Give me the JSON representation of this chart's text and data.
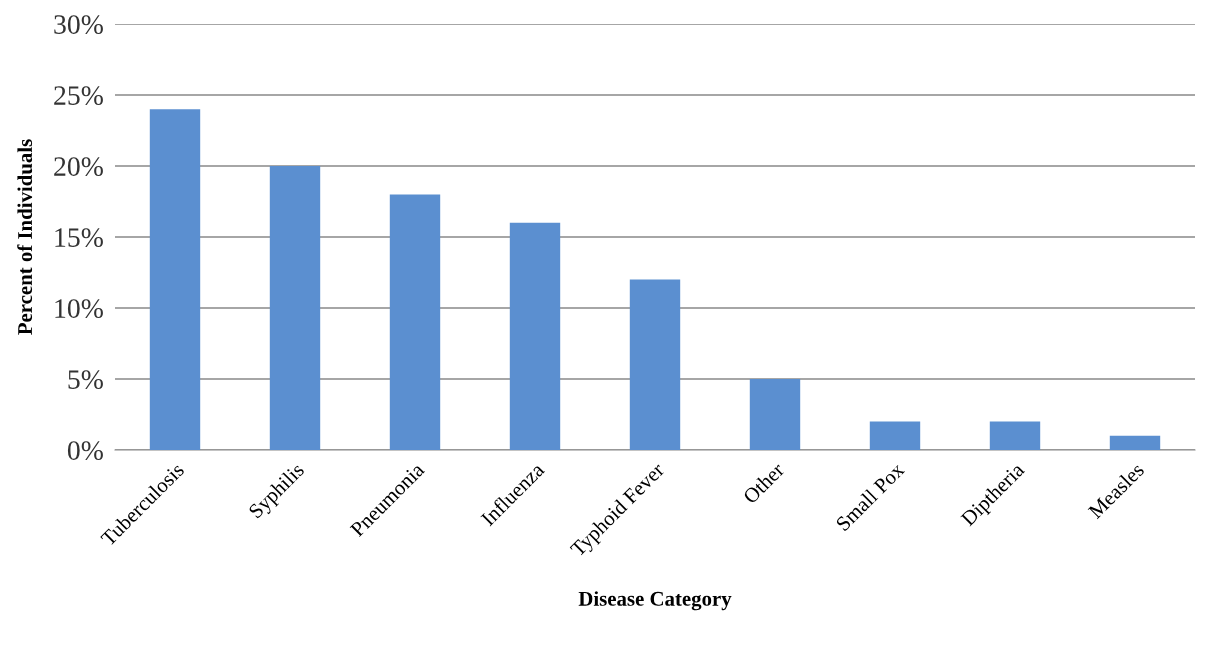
{
  "chart_data": {
    "type": "bar",
    "xlabel": "Disease Category",
    "ylabel": "Percent of Individuals",
    "categories": [
      "Tuberculosis",
      "Syphilis",
      "Pneumonia",
      "Influenza",
      "Typhoid Fever",
      "Other",
      "Small Pox",
      "Diptheria",
      "Measles"
    ],
    "values": [
      24,
      20,
      18,
      16,
      12,
      5,
      2,
      2,
      1
    ],
    "color": "#5b8fd0",
    "ylim": [
      0,
      30
    ],
    "yticks": [
      {
        "value": 0,
        "label": "0%"
      },
      {
        "value": 5,
        "label": "5%"
      },
      {
        "value": 10,
        "label": "10%"
      },
      {
        "value": 15,
        "label": "15%"
      },
      {
        "value": 20,
        "label": "20%"
      },
      {
        "value": 25,
        "label": "25%"
      },
      {
        "value": 30,
        "label": "30%"
      }
    ],
    "grid": "y",
    "legend": false
  }
}
